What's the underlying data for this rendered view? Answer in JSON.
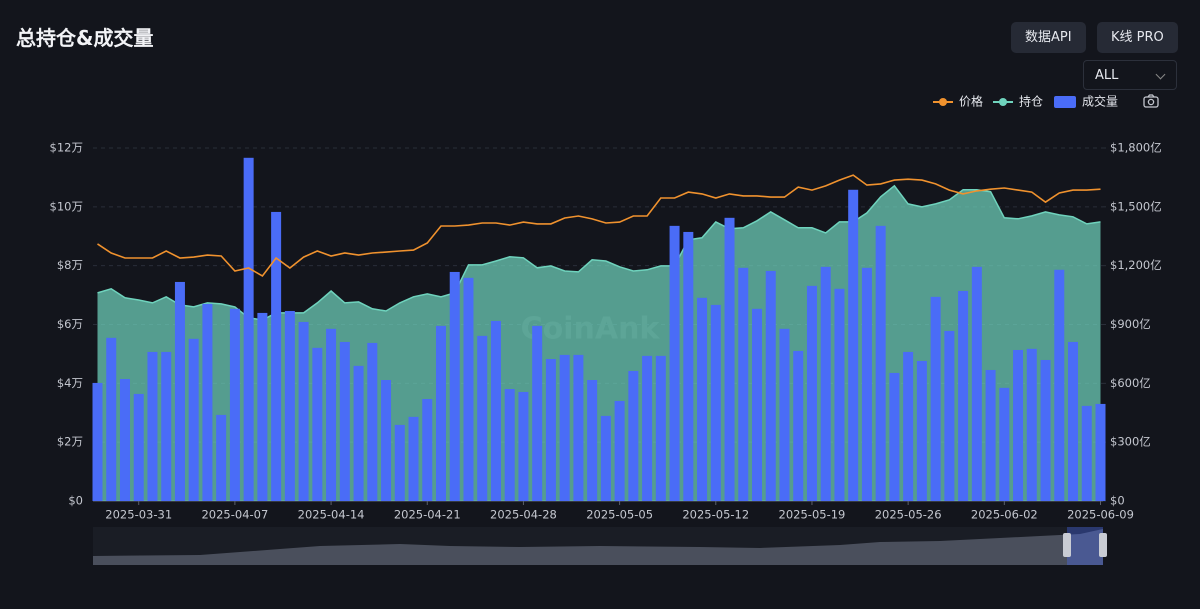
{
  "header": {
    "buttons": [
      "数据API",
      "K线 PRO"
    ],
    "range": "ALL"
  },
  "chart_data": {
    "type": "combo",
    "title": "总持仓&成交量",
    "watermark": "CoinAnk",
    "categories": [
      null,
      null,
      null,
      "2025-03-31",
      null,
      null,
      null,
      null,
      null,
      null,
      "2025-04-07",
      null,
      null,
      null,
      null,
      null,
      null,
      "2025-04-14",
      null,
      null,
      null,
      null,
      null,
      null,
      "2025-04-21",
      null,
      null,
      null,
      null,
      null,
      null,
      "2025-04-28",
      null,
      null,
      null,
      null,
      null,
      null,
      "2025-05-05",
      null,
      null,
      null,
      null,
      null,
      null,
      "2025-05-12",
      null,
      null,
      null,
      null,
      null,
      null,
      "2025-05-19",
      null,
      null,
      null,
      null,
      null,
      null,
      "2025-05-26",
      null,
      null,
      null,
      null,
      null,
      null,
      "2025-06-02",
      null,
      null,
      null,
      null,
      null,
      null,
      "2025-06-09"
    ],
    "series": [
      {
        "name": "价格",
        "type": "line",
        "color": "#f0922e",
        "axis": "y",
        "values": [
          8.74,
          8.43,
          8.26,
          8.26,
          8.26,
          8.5,
          8.26,
          8.29,
          8.36,
          8.33,
          7.82,
          7.92,
          7.65,
          8.26,
          7.92,
          8.29,
          8.5,
          8.33,
          8.43,
          8.36,
          8.43,
          8.46,
          8.5,
          8.53,
          8.77,
          9.35,
          9.35,
          9.38,
          9.45,
          9.45,
          9.38,
          9.48,
          9.42,
          9.42,
          9.62,
          9.69,
          9.59,
          9.45,
          9.48,
          9.69,
          9.69,
          10.3,
          10.3,
          10.5,
          10.44,
          10.3,
          10.44,
          10.37,
          10.37,
          10.33,
          10.33,
          10.67,
          10.57,
          10.71,
          10.91,
          11.08,
          10.74,
          10.78,
          10.91,
          10.94,
          10.91,
          10.78,
          10.57,
          10.44,
          10.54,
          10.6,
          10.64,
          10.57,
          10.5,
          10.16,
          10.47,
          10.57,
          10.57,
          10.6
        ]
      },
      {
        "name": "持仓",
        "type": "area",
        "color": "#6fd3bd",
        "axis": "y2",
        "values": [
          1061,
          1082,
          1036,
          1025,
          1010,
          1041,
          1000,
          990,
          1010,
          1005,
          990,
          934,
          923,
          959,
          959,
          959,
          1010,
          1071,
          1010,
          1015,
          980,
          969,
          1010,
          1041,
          1056,
          1041,
          1061,
          1204,
          1204,
          1224,
          1245,
          1240,
          1189,
          1199,
          1173,
          1168,
          1230,
          1224,
          1194,
          1173,
          1179,
          1199,
          1199,
          1332,
          1342,
          1423,
          1388,
          1393,
          1429,
          1474,
          1434,
          1393,
          1393,
          1367,
          1423,
          1423,
          1469,
          1551,
          1607,
          1515,
          1500,
          1515,
          1536,
          1587,
          1587,
          1577,
          1444,
          1439,
          1454,
          1474,
          1459,
          1449,
          1413,
          1423
        ]
      },
      {
        "name": "成交量",
        "type": "bar",
        "color": "#4a6cf7",
        "axis": "y2",
        "values": [
          602,
          832,
          622,
          546,
          760,
          760,
          1117,
          827,
          1005,
          439,
          980,
          1750,
          959,
          1474,
          969,
          913,
          781,
          878,
          811,
          689,
          806,
          617,
          388,
          429,
          520,
          893,
          1168,
          1138,
          842,
          918,
          571,
          556,
          893,
          724,
          745,
          745,
          617,
          434,
          510,
          663,
          740,
          740,
          1403,
          1372,
          1036,
          1000,
          1444,
          1189,
          980,
          1173,
          878,
          765,
          1097,
          1194,
          1082,
          1587,
          1189,
          1403,
          653,
          760,
          714,
          1041,
          867,
          1071,
          1194,
          668,
          577,
          770,
          776,
          719,
          1179,
          811,
          485,
          495
        ]
      }
    ],
    "ylim": [
      0,
      12
    ],
    "yticks": [
      {
        "value": 0,
        "label": "$0"
      },
      {
        "value": 2,
        "label": "$2万"
      },
      {
        "value": 4,
        "label": "$4万"
      },
      {
        "value": 6,
        "label": "$6万"
      },
      {
        "value": 8,
        "label": "$8万"
      },
      {
        "value": 10,
        "label": "$10万"
      },
      {
        "value": 12,
        "label": "$12万"
      }
    ],
    "y2lim": [
      0,
      1800
    ],
    "y2ticks": [
      {
        "value": 0,
        "label": "$0"
      },
      {
        "value": 300,
        "label": "$300亿"
      },
      {
        "value": 600,
        "label": "$600亿"
      },
      {
        "value": 900,
        "label": "$900亿"
      },
      {
        "value": 1200,
        "label": "$1,200亿"
      },
      {
        "value": 1500,
        "label": "$1,500亿"
      },
      {
        "value": 1800,
        "label": "$1,800亿"
      }
    ],
    "grid": true
  }
}
